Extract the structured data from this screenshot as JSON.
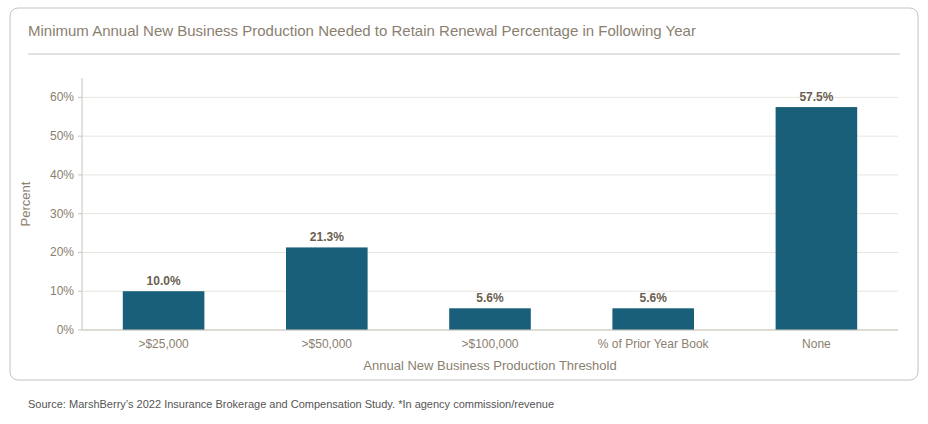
{
  "chart_data": {
    "type": "bar",
    "title": "Minimum Annual New Business Production Needed to Retain Renewal Percentage in Following Year",
    "categories": [
      ">$25,000",
      ">$50,000",
      ">$100,000",
      "% of Prior Year Book",
      "None"
    ],
    "values": [
      10.0,
      21.3,
      5.6,
      5.6,
      57.5
    ],
    "value_labels": [
      "10.0%",
      "21.3%",
      "5.6%",
      "5.6%",
      "57.5%"
    ],
    "data_labels": true,
    "color": "#1a5f7a",
    "xlabel": "Annual New Business Production Threshold",
    "ylabel": "Percent",
    "ylim": [
      0,
      65
    ],
    "yticks": [
      {
        "value": 0,
        "label": "0%"
      },
      {
        "value": 10,
        "label": "10%"
      },
      {
        "value": 20,
        "label": "20%"
      },
      {
        "value": 30,
        "label": "30%"
      },
      {
        "value": 40,
        "label": "40%"
      },
      {
        "value": 50,
        "label": "50%"
      },
      {
        "value": 60,
        "label": "60%"
      }
    ],
    "grid": true,
    "source": "Source: MarshBerry’s 2022 Insurance Brokerage and Compensation Study. *In agency commission/revenue"
  }
}
